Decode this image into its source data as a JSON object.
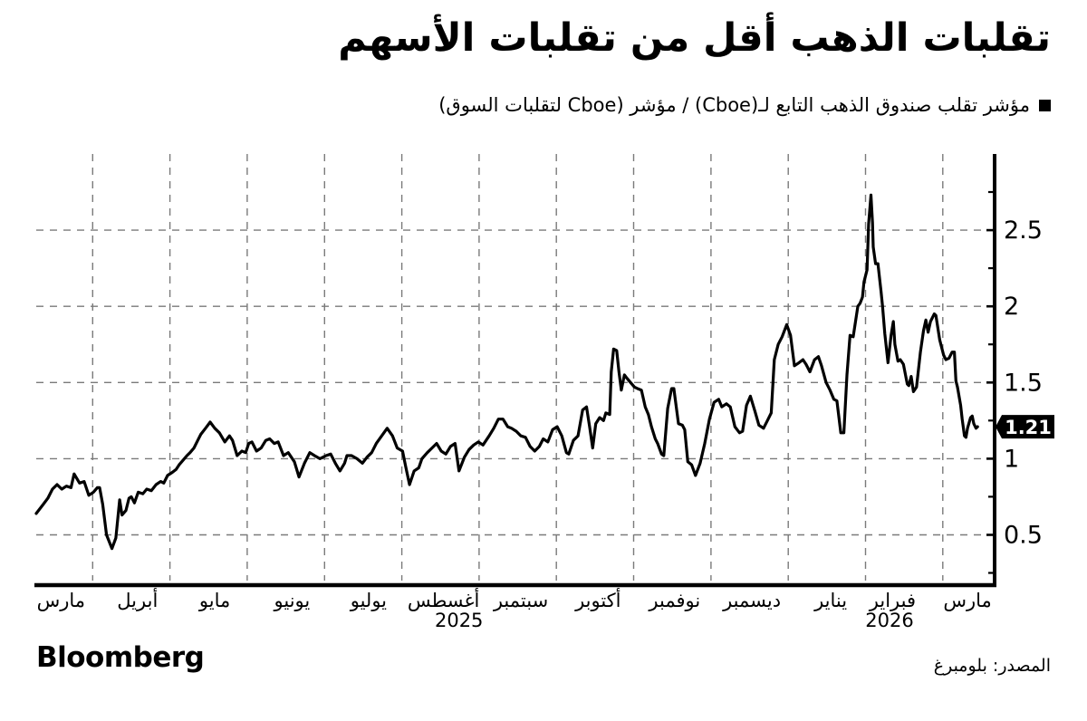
{
  "header": {
    "title": "تقلبات الذهب أقل من تقلبات الأسهم",
    "legend": {
      "marker_color": "#000000",
      "label": "مؤشر تقلب صندوق الذهب التابع لـ(Cboe) / مؤشر (Cboe لتقلبات السوق)"
    }
  },
  "footer": {
    "brand": "Bloomberg",
    "source": "المصدر: بلومبرغ"
  },
  "chart_data": {
    "type": "line",
    "title": "تقلبات الذهب أقل من تقلبات الأسهم",
    "x_unit": "months since 2025-03-01",
    "xlim": [
      0.27,
      12.67
    ],
    "ylim": [
      0.17,
      3.0
    ],
    "grid": "dashed",
    "grid_color": "#7a7a7a",
    "axis_color": "#000000",
    "legend_position": "top-right",
    "y_ticks": [
      {
        "v": 0.5,
        "label": "0.5"
      },
      {
        "v": 1,
        "label": "1"
      },
      {
        "v": 1.5,
        "label": "1.5"
      },
      {
        "v": 2,
        "label": "2"
      },
      {
        "v": 2.5,
        "label": "2.5"
      }
    ],
    "y_minor_ticks": [
      0.25,
      0.75,
      1.25,
      1.75,
      2.25,
      2.75
    ],
    "x_gridlines_t": [
      1,
      2,
      3,
      4,
      5,
      6,
      7,
      8,
      9,
      10,
      11,
      12
    ],
    "month_labels": [
      {
        "text": "مارس",
        "t": 0.59
      },
      {
        "text": "أبريل",
        "t": 1.58
      },
      {
        "text": "مايو",
        "t": 2.58
      },
      {
        "text": "يونيو",
        "t": 3.58
      },
      {
        "text": "يوليو",
        "t": 4.57
      },
      {
        "text": "أغسطس",
        "t": 5.54
      },
      {
        "text": "سبتمبر",
        "t": 6.54
      },
      {
        "text": "أكتوبر",
        "t": 7.54
      },
      {
        "text": "نوفمبر",
        "t": 8.53
      },
      {
        "text": "ديسمبر",
        "t": 9.53
      },
      {
        "text": "يناير",
        "t": 10.55
      },
      {
        "text": "فبراير",
        "t": 11.35
      },
      {
        "text": "مارس",
        "t": 12.32
      }
    ],
    "year_labels": [
      {
        "text": "2025",
        "t": 5.74
      },
      {
        "text": "2026",
        "t": 11.31
      }
    ],
    "last_value": {
      "label": "1.21",
      "v": 1.21
    },
    "series": [
      {
        "name": "مؤشر تقلب صندوق الذهب التابع لـ(Cboe) / مؤشر (Cboe لتقلبات السوق)",
        "color": "#000000",
        "points": [
          [
            0.27,
            0.64
          ],
          [
            0.36,
            0.7
          ],
          [
            0.42,
            0.74
          ],
          [
            0.48,
            0.8
          ],
          [
            0.54,
            0.83
          ],
          [
            0.6,
            0.8
          ],
          [
            0.66,
            0.82
          ],
          [
            0.72,
            0.81
          ],
          [
            0.76,
            0.9
          ],
          [
            0.83,
            0.84
          ],
          [
            0.89,
            0.85
          ],
          [
            0.95,
            0.76
          ],
          [
            1.01,
            0.78
          ],
          [
            1.06,
            0.81
          ],
          [
            1.09,
            0.81
          ],
          [
            1.13,
            0.7
          ],
          [
            1.18,
            0.5
          ],
          [
            1.25,
            0.41
          ],
          [
            1.3,
            0.48
          ],
          [
            1.35,
            0.73
          ],
          [
            1.38,
            0.63
          ],
          [
            1.43,
            0.66
          ],
          [
            1.47,
            0.74
          ],
          [
            1.5,
            0.75
          ],
          [
            1.54,
            0.71
          ],
          [
            1.59,
            0.78
          ],
          [
            1.65,
            0.77
          ],
          [
            1.7,
            0.8
          ],
          [
            1.76,
            0.79
          ],
          [
            1.82,
            0.83
          ],
          [
            1.88,
            0.85
          ],
          [
            1.92,
            0.84
          ],
          [
            1.97,
            0.89
          ],
          [
            2.03,
            0.91
          ],
          [
            2.08,
            0.93
          ],
          [
            2.12,
            0.96
          ],
          [
            2.17,
            0.99
          ],
          [
            2.22,
            1.02
          ],
          [
            2.26,
            1.04
          ],
          [
            2.31,
            1.07
          ],
          [
            2.36,
            1.12
          ],
          [
            2.4,
            1.16
          ],
          [
            2.46,
            1.2
          ],
          [
            2.52,
            1.24
          ],
          [
            2.58,
            1.2
          ],
          [
            2.64,
            1.17
          ],
          [
            2.71,
            1.11
          ],
          [
            2.77,
            1.15
          ],
          [
            2.81,
            1.12
          ],
          [
            2.87,
            1.02
          ],
          [
            2.93,
            1.05
          ],
          [
            2.98,
            1.04
          ],
          [
            3.02,
            1.1
          ],
          [
            3.06,
            1.11
          ],
          [
            3.12,
            1.05
          ],
          [
            3.18,
            1.07
          ],
          [
            3.24,
            1.12
          ],
          [
            3.29,
            1.13
          ],
          [
            3.35,
            1.1
          ],
          [
            3.4,
            1.11
          ],
          [
            3.47,
            1.02
          ],
          [
            3.53,
            1.04
          ],
          [
            3.61,
            0.98
          ],
          [
            3.67,
            0.88
          ],
          [
            3.74,
            0.97
          ],
          [
            3.81,
            1.04
          ],
          [
            3.87,
            1.02
          ],
          [
            3.94,
            1.0
          ],
          [
            4.02,
            1.02
          ],
          [
            4.08,
            1.03
          ],
          [
            4.14,
            0.97
          ],
          [
            4.2,
            0.92
          ],
          [
            4.26,
            0.97
          ],
          [
            4.29,
            1.02
          ],
          [
            4.35,
            1.02
          ],
          [
            4.42,
            1.0
          ],
          [
            4.49,
            0.97
          ],
          [
            4.55,
            1.01
          ],
          [
            4.61,
            1.04
          ],
          [
            4.67,
            1.1
          ],
          [
            4.74,
            1.15
          ],
          [
            4.81,
            1.2
          ],
          [
            4.88,
            1.15
          ],
          [
            4.94,
            1.07
          ],
          [
            5.01,
            1.05
          ],
          [
            5.05,
            0.95
          ],
          [
            5.1,
            0.83
          ],
          [
            5.16,
            0.92
          ],
          [
            5.22,
            0.94
          ],
          [
            5.26,
            1.0
          ],
          [
            5.33,
            1.04
          ],
          [
            5.39,
            1.07
          ],
          [
            5.45,
            1.1
          ],
          [
            5.51,
            1.05
          ],
          [
            5.57,
            1.03
          ],
          [
            5.63,
            1.08
          ],
          [
            5.69,
            1.1
          ],
          [
            5.74,
            0.92
          ],
          [
            5.81,
            1.01
          ],
          [
            5.87,
            1.06
          ],
          [
            5.93,
            1.09
          ],
          [
            5.99,
            1.11
          ],
          [
            6.05,
            1.09
          ],
          [
            6.13,
            1.15
          ],
          [
            6.19,
            1.2
          ],
          [
            6.25,
            1.26
          ],
          [
            6.31,
            1.26
          ],
          [
            6.37,
            1.21
          ],
          [
            6.42,
            1.2
          ],
          [
            6.48,
            1.18
          ],
          [
            6.54,
            1.15
          ],
          [
            6.6,
            1.14
          ],
          [
            6.66,
            1.08
          ],
          [
            6.72,
            1.05
          ],
          [
            6.78,
            1.08
          ],
          [
            6.83,
            1.13
          ],
          [
            6.89,
            1.11
          ],
          [
            6.95,
            1.19
          ],
          [
            7.01,
            1.21
          ],
          [
            7.07,
            1.15
          ],
          [
            7.13,
            1.04
          ],
          [
            7.16,
            1.03
          ],
          [
            7.22,
            1.12
          ],
          [
            7.28,
            1.15
          ],
          [
            7.34,
            1.32
          ],
          [
            7.39,
            1.34
          ],
          [
            7.43,
            1.21
          ],
          [
            7.47,
            1.07
          ],
          [
            7.51,
            1.23
          ],
          [
            7.56,
            1.27
          ],
          [
            7.61,
            1.25
          ],
          [
            7.64,
            1.3
          ],
          [
            7.69,
            1.29
          ],
          [
            7.71,
            1.57
          ],
          [
            7.74,
            1.72
          ],
          [
            7.78,
            1.71
          ],
          [
            7.81,
            1.57
          ],
          [
            7.84,
            1.45
          ],
          [
            7.88,
            1.55
          ],
          [
            7.91,
            1.53
          ],
          [
            7.96,
            1.5
          ],
          [
            8.01,
            1.47
          ],
          [
            8.05,
            1.46
          ],
          [
            8.1,
            1.45
          ],
          [
            8.15,
            1.34
          ],
          [
            8.19,
            1.29
          ],
          [
            8.23,
            1.21
          ],
          [
            8.28,
            1.13
          ],
          [
            8.31,
            1.1
          ],
          [
            8.36,
            1.03
          ],
          [
            8.39,
            1.02
          ],
          [
            8.44,
            1.33
          ],
          [
            8.49,
            1.46
          ],
          [
            8.52,
            1.46
          ],
          [
            8.58,
            1.23
          ],
          [
            8.63,
            1.22
          ],
          [
            8.66,
            1.19
          ],
          [
            8.7,
            0.98
          ],
          [
            8.75,
            0.96
          ],
          [
            8.8,
            0.89
          ],
          [
            8.86,
            0.97
          ],
          [
            8.92,
            1.1
          ],
          [
            8.98,
            1.26
          ],
          [
            9.04,
            1.37
          ],
          [
            9.1,
            1.39
          ],
          [
            9.14,
            1.34
          ],
          [
            9.2,
            1.36
          ],
          [
            9.25,
            1.34
          ],
          [
            9.31,
            1.21
          ],
          [
            9.37,
            1.17
          ],
          [
            9.41,
            1.18
          ],
          [
            9.46,
            1.35
          ],
          [
            9.51,
            1.41
          ],
          [
            9.57,
            1.31
          ],
          [
            9.62,
            1.22
          ],
          [
            9.68,
            1.2
          ],
          [
            9.73,
            1.25
          ],
          [
            9.78,
            1.3
          ],
          [
            9.82,
            1.65
          ],
          [
            9.87,
            1.75
          ],
          [
            9.92,
            1.8
          ],
          [
            9.98,
            1.88
          ],
          [
            10.03,
            1.81
          ],
          [
            10.08,
            1.61
          ],
          [
            10.14,
            1.63
          ],
          [
            10.19,
            1.65
          ],
          [
            10.23,
            1.62
          ],
          [
            10.28,
            1.57
          ],
          [
            10.34,
            1.65
          ],
          [
            10.39,
            1.67
          ],
          [
            10.43,
            1.61
          ],
          [
            10.49,
            1.5
          ],
          [
            10.54,
            1.45
          ],
          [
            10.59,
            1.39
          ],
          [
            10.63,
            1.38
          ],
          [
            10.68,
            1.17
          ],
          [
            10.72,
            1.17
          ],
          [
            10.76,
            1.55
          ],
          [
            10.8,
            1.81
          ],
          [
            10.84,
            1.8
          ],
          [
            10.9,
            2.0
          ],
          [
            10.93,
            2.02
          ],
          [
            10.96,
            2.06
          ],
          [
            10.98,
            2.16
          ],
          [
            11.02,
            2.24
          ],
          [
            11.04,
            2.54
          ],
          [
            11.07,
            2.73
          ],
          [
            11.09,
            2.55
          ],
          [
            11.1,
            2.39
          ],
          [
            11.13,
            2.28
          ],
          [
            11.16,
            2.28
          ],
          [
            11.2,
            2.1
          ],
          [
            11.22,
            2.0
          ],
          [
            11.25,
            1.82
          ],
          [
            11.29,
            1.63
          ],
          [
            11.33,
            1.81
          ],
          [
            11.36,
            1.9
          ],
          [
            11.38,
            1.75
          ],
          [
            11.42,
            1.64
          ],
          [
            11.45,
            1.65
          ],
          [
            11.49,
            1.62
          ],
          [
            11.54,
            1.49
          ],
          [
            11.56,
            1.48
          ],
          [
            11.59,
            1.54
          ],
          [
            11.62,
            1.44
          ],
          [
            11.66,
            1.47
          ],
          [
            11.71,
            1.7
          ],
          [
            11.75,
            1.84
          ],
          [
            11.78,
            1.91
          ],
          [
            11.81,
            1.83
          ],
          [
            11.84,
            1.9
          ],
          [
            11.89,
            1.95
          ],
          [
            11.91,
            1.94
          ],
          [
            11.96,
            1.78
          ],
          [
            12.01,
            1.68
          ],
          [
            12.04,
            1.65
          ],
          [
            12.08,
            1.66
          ],
          [
            12.12,
            1.7
          ],
          [
            12.15,
            1.7
          ],
          [
            12.17,
            1.51
          ],
          [
            12.19,
            1.47
          ],
          [
            12.23,
            1.35
          ],
          [
            12.25,
            1.26
          ],
          [
            12.28,
            1.15
          ],
          [
            12.3,
            1.14
          ],
          [
            12.32,
            1.2
          ],
          [
            12.36,
            1.27
          ],
          [
            12.38,
            1.28
          ],
          [
            12.4,
            1.23
          ],
          [
            12.43,
            1.2
          ],
          [
            12.45,
            1.21
          ]
        ]
      }
    ]
  }
}
